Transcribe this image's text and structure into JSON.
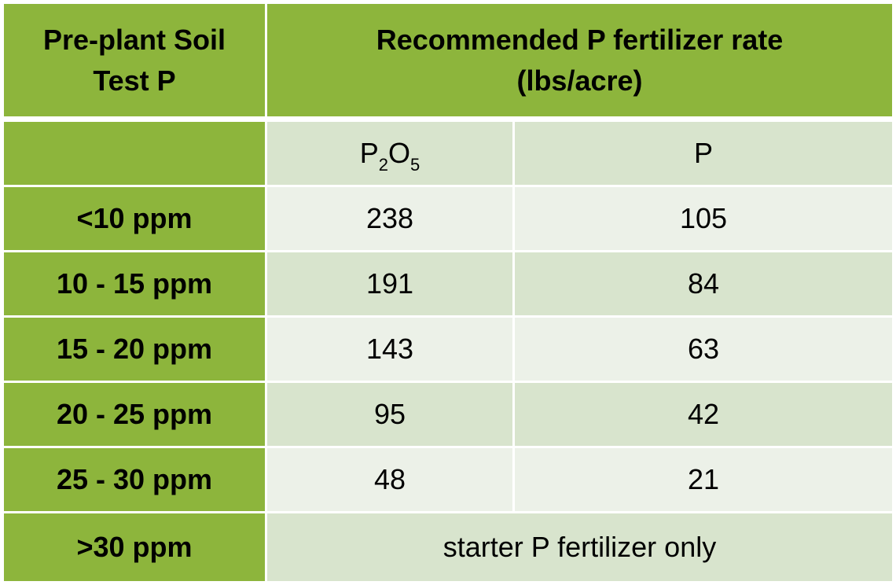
{
  "header": {
    "col1": "Pre-plant Soil Test P",
    "col2_line1": "Recommended P fertilizer rate",
    "col2_line2": "(lbs/acre)"
  },
  "subheader": {
    "p2o5_base1": "P",
    "p2o5_sub1": "2",
    "p2o5_base2": "O",
    "p2o5_sub2": "5",
    "p": "P"
  },
  "rows": [
    {
      "soil_test": "<10 ppm",
      "p2o5": "238",
      "p": "105"
    },
    {
      "soil_test": "10 - 15 ppm",
      "p2o5": "191",
      "p": "84"
    },
    {
      "soil_test": "15 - 20 ppm",
      "p2o5": "143",
      "p": "63"
    },
    {
      "soil_test": "20 - 25 ppm",
      "p2o5": "95",
      "p": "42"
    },
    {
      "soil_test": "25 - 30 ppm",
      "p2o5": "48",
      "p": "21"
    }
  ],
  "last_row": {
    "soil_test": ">30 ppm",
    "note": "starter P fertilizer only"
  },
  "colors": {
    "header_green": "#8db53c",
    "cell_dark": "#d8e4cd",
    "cell_light": "#ecf1e8"
  }
}
